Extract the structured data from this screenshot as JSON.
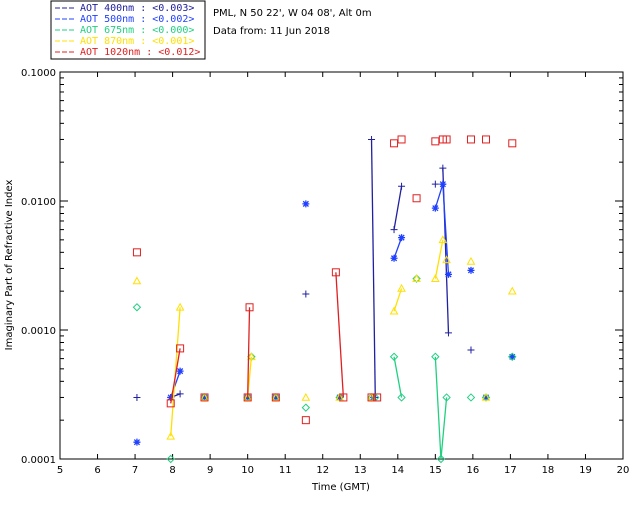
{
  "chart_data": {
    "type": "scatter",
    "info": {
      "location": "PML, N 50 22', W 04 08', Alt 0m",
      "date": "Data from: 11 Jun 2018"
    },
    "xlabel": "Time (GMT)",
    "ylabel": "Imaginary Part of Refractive Index",
    "xlim": [
      5,
      20
    ],
    "ylim": [
      0.0001,
      0.1
    ],
    "yscale": "log",
    "x_ticks": [
      5,
      6,
      7,
      8,
      9,
      10,
      11,
      12,
      13,
      14,
      15,
      16,
      17,
      18,
      19,
      20
    ],
    "x_tick_labels": [
      "5",
      "6",
      "7",
      "8",
      "9",
      "10",
      "11",
      "12",
      "13",
      "14",
      "15",
      "16",
      "17",
      "18",
      "19",
      "20"
    ],
    "y_ticks": [
      0.0001,
      0.001,
      0.01,
      0.1
    ],
    "y_tick_labels": [
      "0.0001",
      "0.0010",
      "0.0100",
      "0.1000"
    ],
    "legend_position": "top-left",
    "series": [
      {
        "name": "AOT  400nm : <0.003>",
        "color": "#2020a0",
        "marker": "plus",
        "points": [
          [
            7.05,
            0.0003
          ],
          [
            7.95,
            0.0003
          ],
          [
            8.2,
            0.00032
          ],
          [
            8.85,
            0.0003
          ],
          [
            10.0,
            0.0003
          ],
          [
            10.75,
            0.0003
          ],
          [
            11.55,
            0.0019
          ],
          [
            12.45,
            0.0003
          ],
          [
            13.3,
            0.03
          ],
          [
            13.4,
            0.0003
          ],
          [
            13.9,
            0.006
          ],
          [
            14.1,
            0.013
          ],
          [
            15.0,
            0.0135
          ],
          [
            15.2,
            0.018
          ],
          [
            15.35,
            0.00095
          ],
          [
            15.95,
            0.0007
          ],
          [
            16.35,
            0.0003
          ],
          [
            17.05,
            0.00062
          ]
        ],
        "segments": [
          [
            [
              7.95,
              0.0003
            ],
            [
              8.2,
              0.00032
            ]
          ],
          [
            [
              13.3,
              0.03
            ],
            [
              13.4,
              0.0003
            ]
          ],
          [
            [
              13.9,
              0.006
            ],
            [
              14.1,
              0.013
            ]
          ],
          [
            [
              15.2,
              0.018
            ],
            [
              15.35,
              0.00095
            ]
          ]
        ]
      },
      {
        "name": "AOT  500nm : <0.002>",
        "color": "#2040ff",
        "marker": "asterisk",
        "points": [
          [
            7.05,
            0.000135
          ],
          [
            7.95,
            0.0003
          ],
          [
            8.2,
            0.00048
          ],
          [
            8.85,
            0.0003
          ],
          [
            10.0,
            0.0003
          ],
          [
            10.75,
            0.0003
          ],
          [
            11.55,
            0.0095
          ],
          [
            12.45,
            0.0003
          ],
          [
            13.35,
            0.0003
          ],
          [
            13.9,
            0.0036
          ],
          [
            14.1,
            0.0052
          ],
          [
            15.0,
            0.0088
          ],
          [
            15.2,
            0.0135
          ],
          [
            15.35,
            0.0027
          ],
          [
            15.95,
            0.0029
          ],
          [
            16.35,
            0.0003
          ],
          [
            17.05,
            0.00062
          ]
        ],
        "segments": [
          [
            [
              7.95,
              0.0003
            ],
            [
              8.2,
              0.00048
            ]
          ],
          [
            [
              13.9,
              0.0036
            ],
            [
              14.1,
              0.0052
            ]
          ],
          [
            [
              15.0,
              0.0088
            ],
            [
              15.2,
              0.0135
            ]
          ],
          [
            [
              15.2,
              0.0135
            ],
            [
              15.35,
              0.0027
            ]
          ]
        ]
      },
      {
        "name": "AOT  675nm : <0.000>",
        "color": "#20d080",
        "marker": "diamond",
        "points": [
          [
            7.05,
            0.0015
          ],
          [
            7.95,
            0.0001
          ],
          [
            8.85,
            0.0003
          ],
          [
            10.0,
            0.0003
          ],
          [
            10.1,
            0.00062
          ],
          [
            10.75,
            0.0003
          ],
          [
            11.55,
            0.00025
          ],
          [
            12.45,
            0.0003
          ],
          [
            13.3,
            0.0003
          ],
          [
            13.4,
            0.0003
          ],
          [
            13.9,
            0.00062
          ],
          [
            14.1,
            0.0003
          ],
          [
            14.5,
            0.0025
          ],
          [
            15.0,
            0.00062
          ],
          [
            15.15,
            0.0001
          ],
          [
            15.3,
            0.0003
          ],
          [
            15.95,
            0.0003
          ],
          [
            16.35,
            0.0003
          ],
          [
            17.05,
            0.00062
          ]
        ],
        "segments": [
          [
            [
              13.9,
              0.00062
            ],
            [
              14.1,
              0.0003
            ]
          ],
          [
            [
              15.0,
              0.00062
            ],
            [
              15.15,
              0.0001
            ]
          ],
          [
            [
              15.15,
              0.0001
            ],
            [
              15.3,
              0.0003
            ]
          ]
        ]
      },
      {
        "name": "AOT  870nm : <0.001>",
        "color": "#ffe000",
        "marker": "triangle",
        "points": [
          [
            7.05,
            0.0024
          ],
          [
            7.95,
            0.00015
          ],
          [
            8.2,
            0.0015
          ],
          [
            8.85,
            0.0003
          ],
          [
            10.0,
            0.0003
          ],
          [
            10.1,
            0.00062
          ],
          [
            10.75,
            0.0003
          ],
          [
            11.55,
            0.0003
          ],
          [
            12.45,
            0.0003
          ],
          [
            13.3,
            0.0003
          ],
          [
            13.9,
            0.0014
          ],
          [
            14.1,
            0.0021
          ],
          [
            14.5,
            0.0025
          ],
          [
            15.0,
            0.0025
          ],
          [
            15.2,
            0.005
          ],
          [
            15.3,
            0.0035
          ],
          [
            15.95,
            0.0034
          ],
          [
            16.35,
            0.0003
          ],
          [
            17.05,
            0.002
          ]
        ],
        "segments": [
          [
            [
              7.95,
              0.00015
            ],
            [
              8.2,
              0.0015
            ]
          ],
          [
            [
              10.0,
              0.0003
            ],
            [
              10.1,
              0.00062
            ]
          ],
          [
            [
              13.9,
              0.0014
            ],
            [
              14.1,
              0.0021
            ]
          ],
          [
            [
              15.0,
              0.0025
            ],
            [
              15.2,
              0.005
            ]
          ]
        ]
      },
      {
        "name": "AOT 1020nm : <0.012>",
        "color": "#e02020",
        "marker": "square",
        "points": [
          [
            7.05,
            0.004
          ],
          [
            7.95,
            0.00027
          ],
          [
            8.2,
            0.00072
          ],
          [
            8.85,
            0.0003
          ],
          [
            10.0,
            0.0003
          ],
          [
            10.05,
            0.0015
          ],
          [
            10.75,
            0.0003
          ],
          [
            11.55,
            0.0002
          ],
          [
            12.35,
            0.0028
          ],
          [
            12.55,
            0.0003
          ],
          [
            13.3,
            0.0003
          ],
          [
            13.45,
            0.0003
          ],
          [
            13.9,
            0.028
          ],
          [
            14.1,
            0.03
          ],
          [
            14.5,
            0.0105
          ],
          [
            15.0,
            0.029
          ],
          [
            15.2,
            0.03
          ],
          [
            15.3,
            0.03
          ],
          [
            15.95,
            0.03
          ],
          [
            16.35,
            0.03
          ],
          [
            17.05,
            0.028
          ]
        ],
        "segments": [
          [
            [
              7.95,
              0.00027
            ],
            [
              8.2,
              0.00072
            ]
          ],
          [
            [
              10.0,
              0.0003
            ],
            [
              10.05,
              0.0015
            ]
          ],
          [
            [
              12.35,
              0.0028
            ],
            [
              12.55,
              0.0003
            ]
          ]
        ]
      }
    ]
  }
}
